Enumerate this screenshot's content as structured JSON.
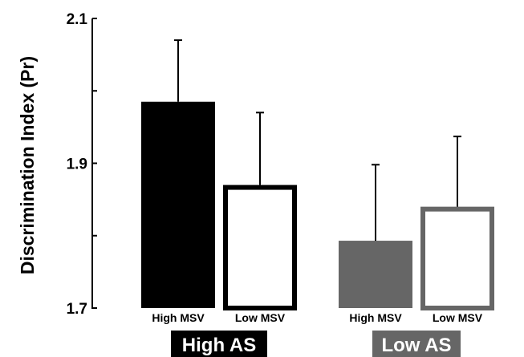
{
  "chart_data": {
    "type": "bar",
    "title": "",
    "xlabel": "",
    "ylabel": "Discrimination Index (Pr)",
    "ylim": [
      1.7,
      2.1
    ],
    "yticks": [
      1.7,
      1.8,
      1.9,
      2.0,
      2.1
    ],
    "ytick_labels": [
      "1.7",
      "",
      "1.9",
      "",
      "2.1"
    ],
    "grid": false,
    "legend": "none",
    "groups": [
      {
        "label": "High AS",
        "label_bg": "#000000",
        "bars": [
          {
            "category": "High MSV",
            "value": 1.985,
            "error": 0.085,
            "fill": "#000000",
            "stroke": "#000000"
          },
          {
            "category": "Low MSV",
            "value": 1.87,
            "error": 0.1,
            "fill": "#ffffff",
            "stroke": "#000000"
          }
        ]
      },
      {
        "label": "Low AS",
        "label_bg": "#666666",
        "bars": [
          {
            "category": "High MSV",
            "value": 1.793,
            "error": 0.105,
            "fill": "#666666",
            "stroke": "#666666"
          },
          {
            "category": "Low MSV",
            "value": 1.84,
            "error": 0.097,
            "fill": "#ffffff",
            "stroke": "#666666"
          }
        ]
      }
    ]
  }
}
